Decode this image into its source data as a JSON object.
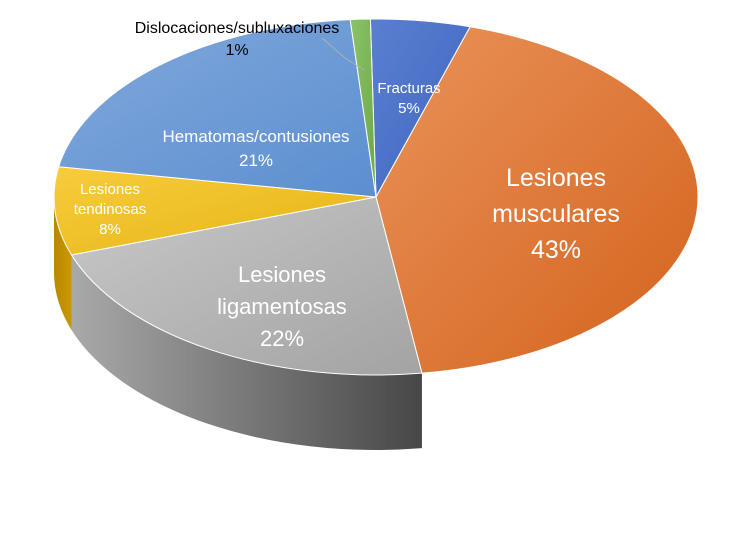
{
  "chart_data": {
    "type": "pie",
    "style": "3d",
    "categories": [
      "Fracturas",
      "Lesiones musculares",
      "Lesiones ligamentosas",
      "Lesiones tendinosas",
      "Hematomas/contusiones",
      "Dislocaciones/subluxaciones"
    ],
    "values": [
      5,
      43,
      22,
      8,
      21,
      1
    ],
    "value_labels": [
      "5%",
      "43%",
      "22%",
      "8%",
      "21%",
      "1%"
    ],
    "colors": [
      "#4472C4",
      "#ED7D31",
      "#A5A5A5",
      "#FFC000",
      "#5B9BD5",
      "#70AD47"
    ],
    "legend": "none"
  }
}
